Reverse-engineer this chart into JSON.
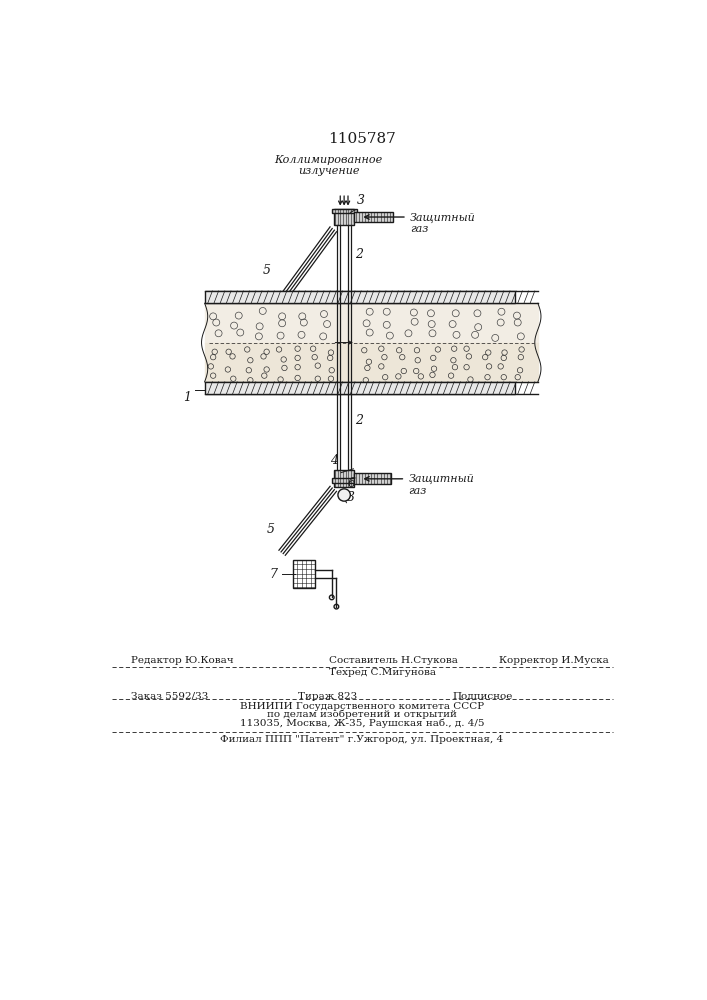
{
  "title": "1105787",
  "bg": "#ffffff",
  "lc": "#1a1a1a",
  "top_label": "Коллимированное\nизлучение",
  "zg_top": "Защитный\nгаз",
  "zg_bot": "Защитный\nгаз",
  "f_editor": "Редактор Ю.Ковач",
  "f_comp": "Составитель Н.Стукова",
  "f_tech": "Техред С.Мигунова",
  "f_corr": "Корректор И.Муска",
  "f_order": "Заказ 5592/33",
  "f_circ": "Тираж 823",
  "f_sub": "Подписное",
  "f_vniip": "ВНИИПИ Государственного комитета СССР",
  "f_affairs": "по делам изобретений и открытий",
  "f_addr": "113035, Москва, Ж-35, Раушская наб., д. 4/5",
  "f_filial": "Филиал ППП \"Патент\" г.Ужгород, ул. Проектная, 4"
}
